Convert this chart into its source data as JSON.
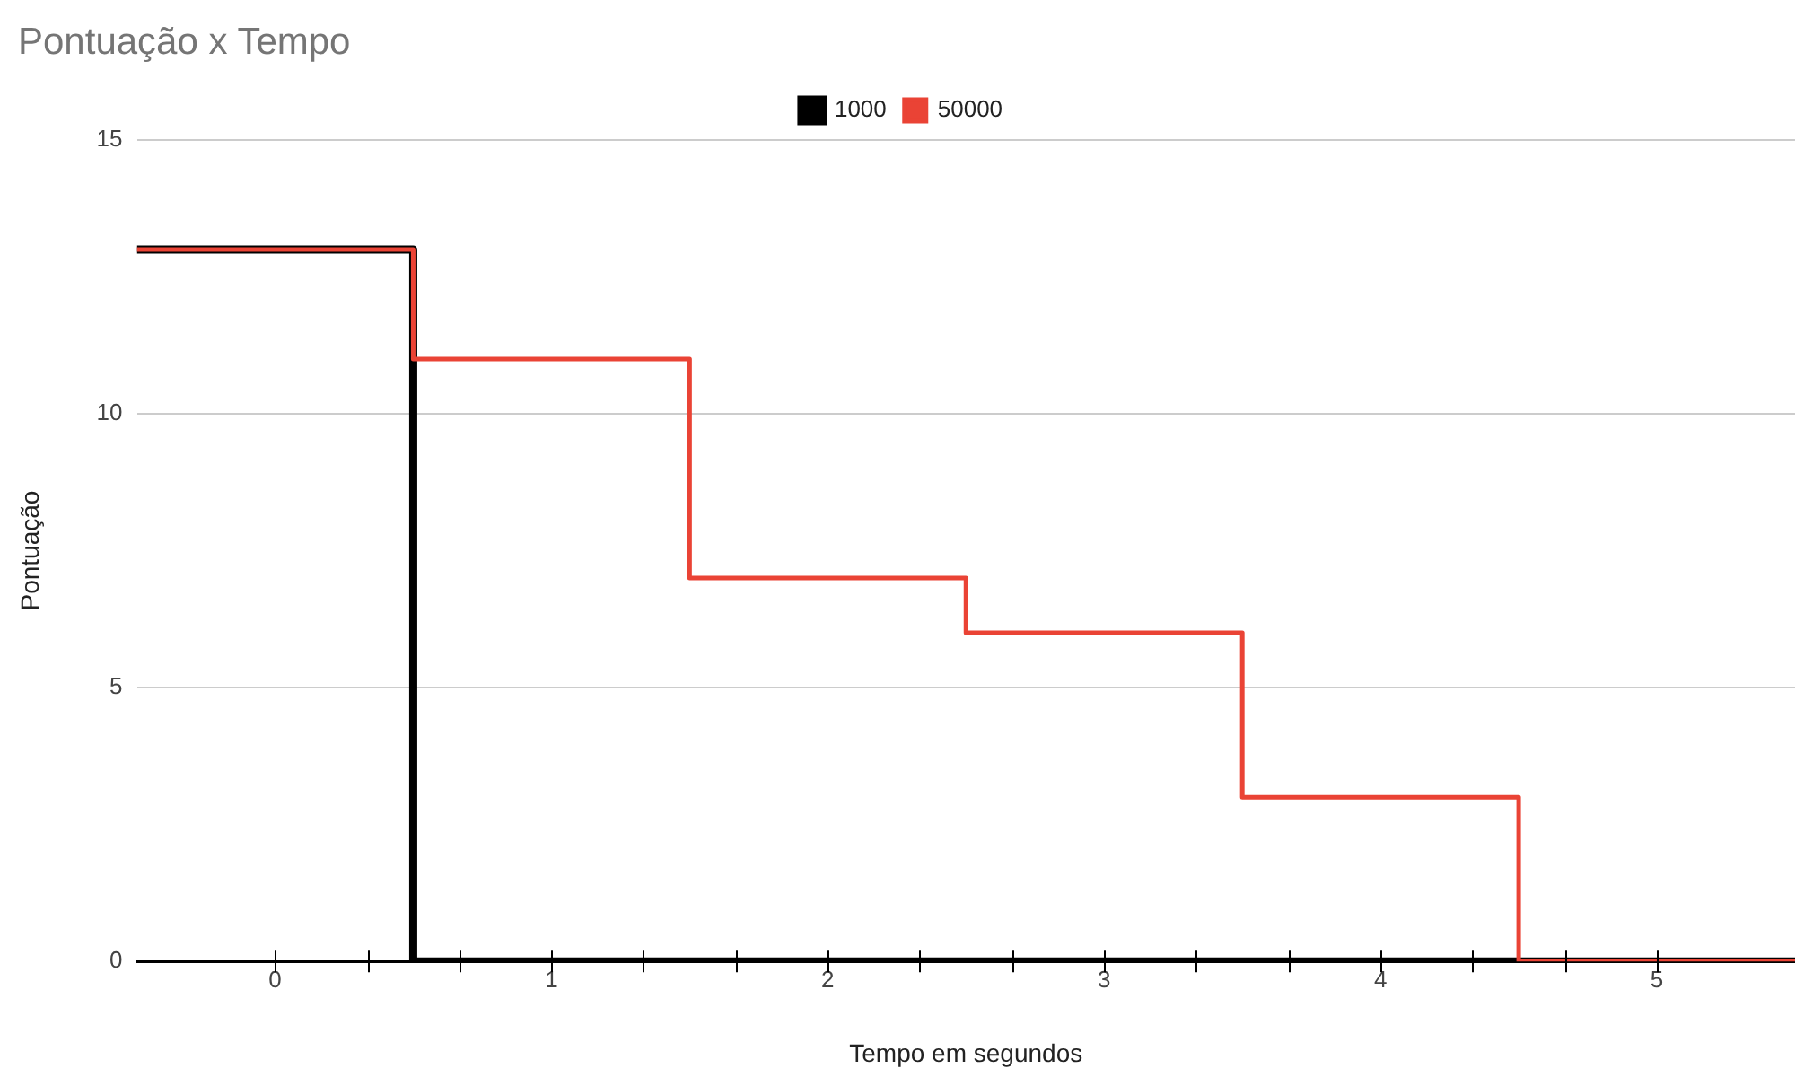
{
  "chart_data": {
    "type": "step",
    "title": "Pontuação x Tempo",
    "xlabel": "Tempo em segundos",
    "ylabel": "Pontuação",
    "x": [
      -0.5,
      0.5,
      1.5,
      2.5,
      3.5,
      4.5,
      5.5
    ],
    "series": [
      {
        "name": "1000",
        "color": "#000000",
        "values": [
          13,
          0,
          0,
          0,
          0,
          0,
          0
        ]
      },
      {
        "name": "50000",
        "color": "#ea4335",
        "values": [
          13,
          11,
          7,
          6,
          3,
          0,
          0
        ]
      }
    ],
    "xlim": [
      -0.5,
      5.5
    ],
    "xticks": [
      0,
      {
        "value": 0.333,
        "label": null
      },
      {
        "value": 0.667,
        "label": null
      },
      1,
      {
        "value": 1.333,
        "label": null
      },
      {
        "value": 1.667,
        "label": null
      },
      2,
      {
        "value": 2.333,
        "label": null
      },
      {
        "value": 2.667,
        "label": null
      },
      3,
      {
        "value": 3.333,
        "label": null
      },
      {
        "value": 3.667,
        "label": null
      },
      4,
      {
        "value": 4.333,
        "label": null
      },
      {
        "value": 4.667,
        "label": null
      },
      5
    ],
    "ylim": [
      0,
      15
    ],
    "yticks": [
      0,
      5,
      10,
      15
    ],
    "grid": "y",
    "legend": "top",
    "line_style": "solid",
    "marker": "none"
  }
}
